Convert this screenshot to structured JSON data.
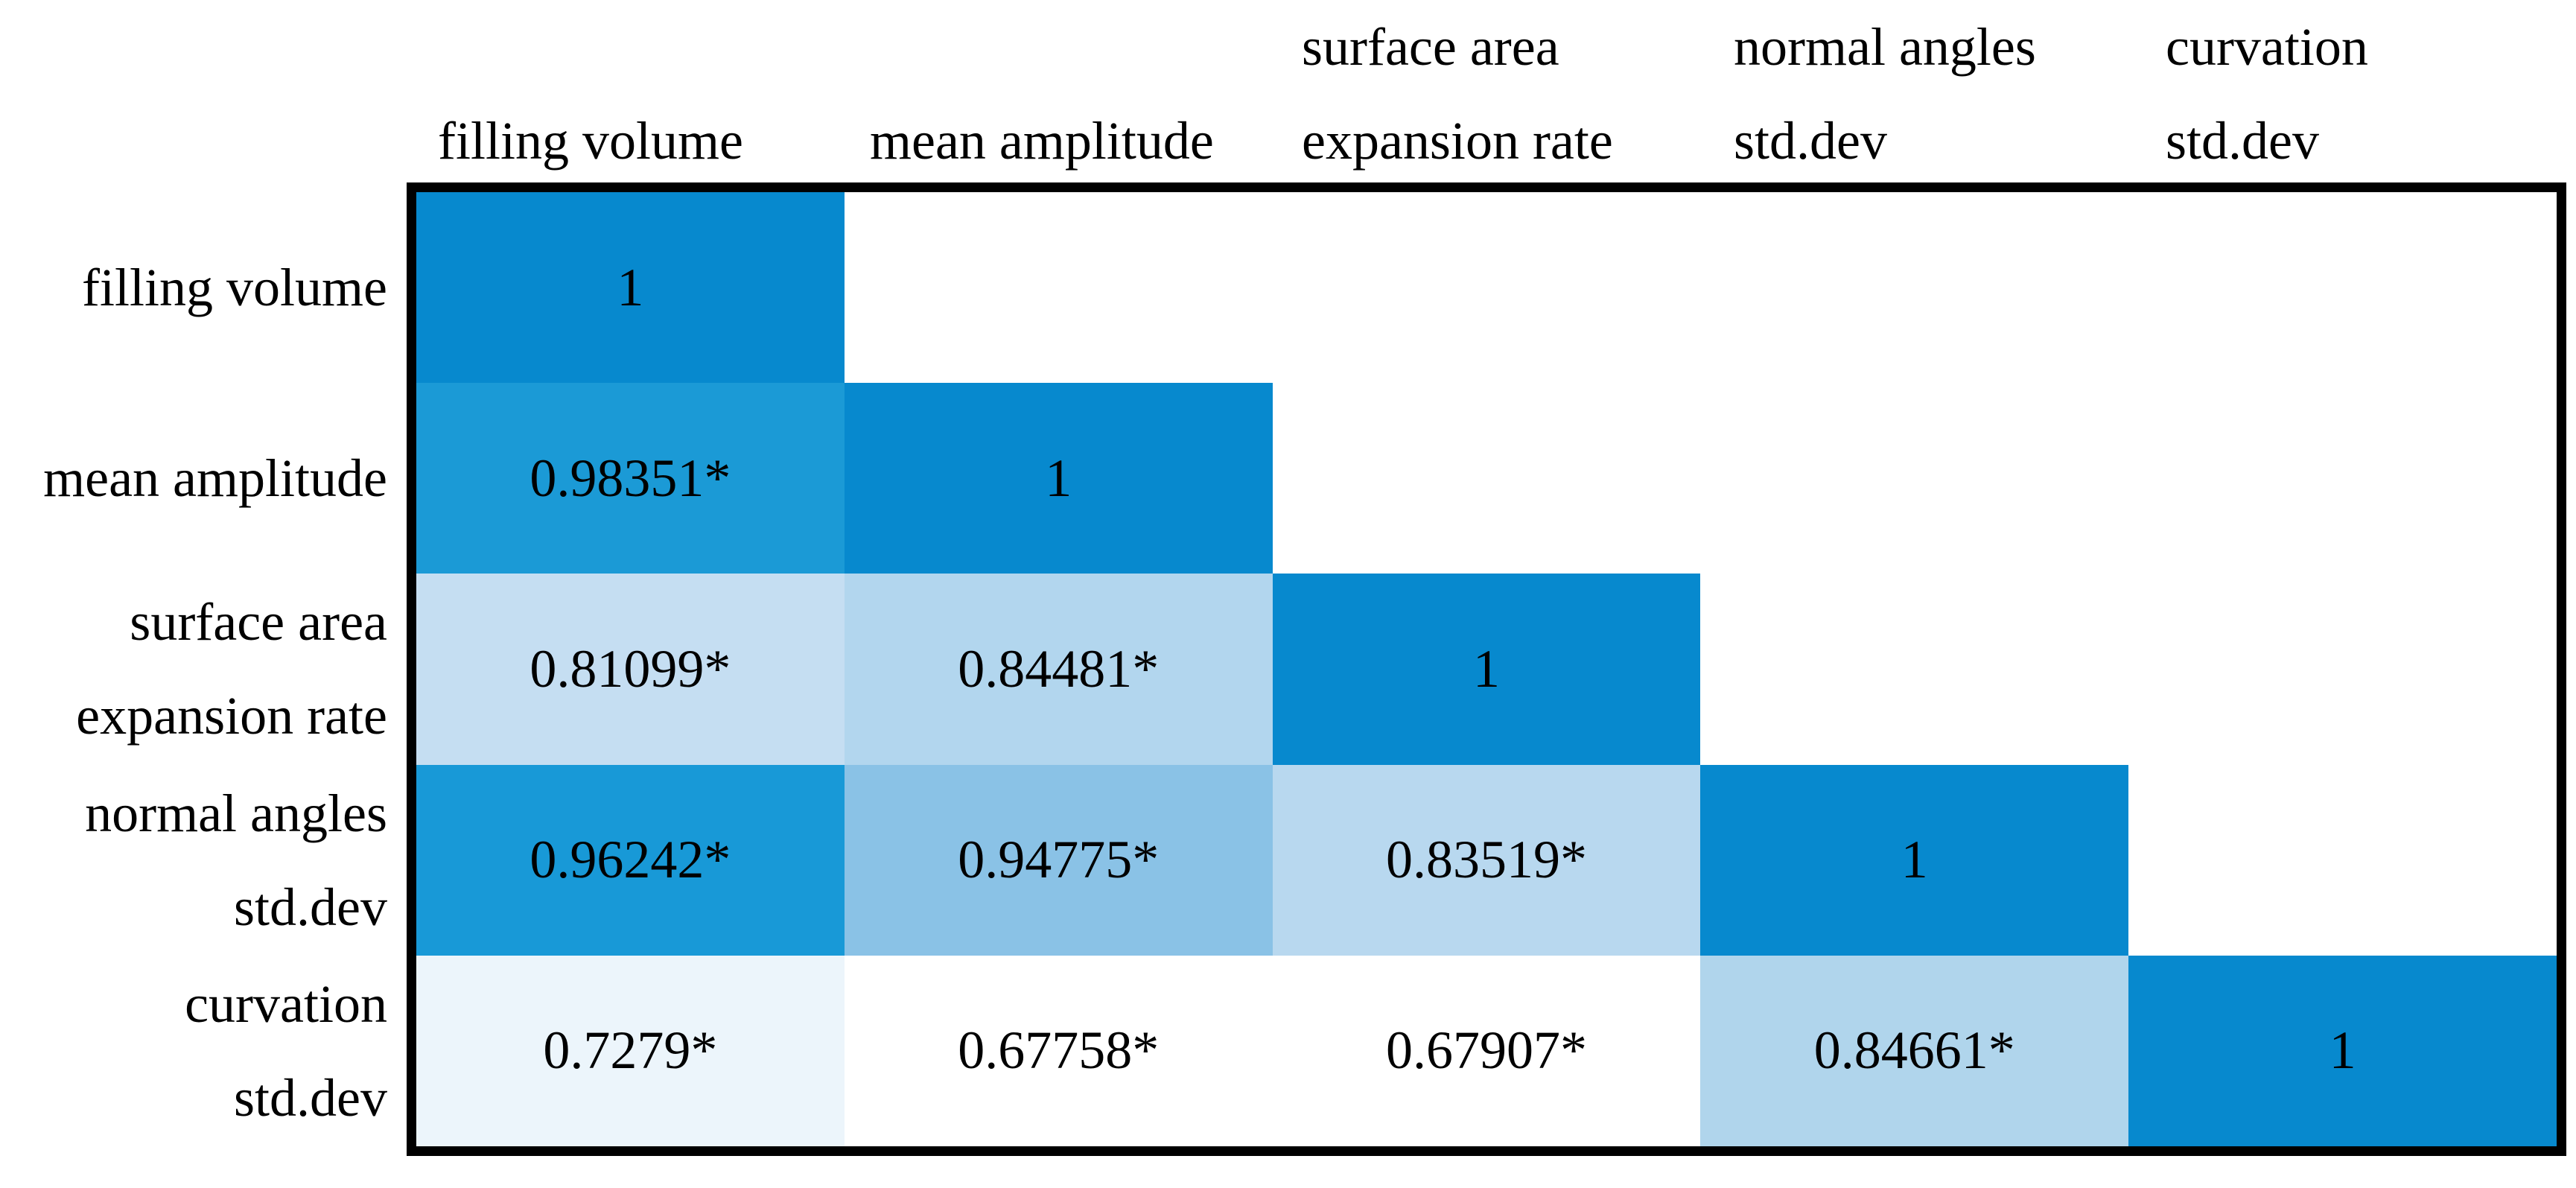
{
  "chart_data": {
    "type": "heatmap",
    "title": "",
    "description": "lower-triangular correlation matrix, blue intensity encodes correlation strength",
    "variables": [
      "filling volume",
      "mean amplitude",
      "surface area expansion rate",
      "normal angles std.dev",
      "curvation std.dev"
    ],
    "column_headers": [
      [
        "",
        "filling volume"
      ],
      [
        "",
        "mean amplitude"
      ],
      [
        "surface area",
        "expansion rate"
      ],
      [
        "normal angles",
        "std.dev"
      ],
      [
        "curvation",
        "std.dev"
      ]
    ],
    "row_labels": [
      [
        "filling volume",
        ""
      ],
      [
        "mean amplitude",
        ""
      ],
      [
        "surface area",
        "expansion rate"
      ],
      [
        "normal angles",
        "std.dev"
      ],
      [
        "curvation",
        "std.dev"
      ]
    ],
    "correlations": [
      [
        1,
        null,
        null,
        null,
        null
      ],
      [
        0.98351,
        1,
        null,
        null,
        null
      ],
      [
        0.81099,
        0.84481,
        1,
        null,
        null
      ],
      [
        0.96242,
        0.94775,
        0.83519,
        1,
        null
      ],
      [
        0.7279,
        0.67758,
        0.67907,
        0.84661,
        1
      ]
    ],
    "significance_marker": "*",
    "cells": [
      [
        {
          "text": "1",
          "color": "#0789ce"
        },
        null,
        null,
        null,
        null
      ],
      [
        {
          "text": "0.98351*",
          "color": "#1b9ad6"
        },
        {
          "text": "1",
          "color": "#0789ce"
        },
        null,
        null,
        null
      ],
      [
        {
          "text": "0.81099*",
          "color": "#c5def2"
        },
        {
          "text": "0.84481*",
          "color": "#b2d6ee"
        },
        {
          "text": "1",
          "color": "#0789ce"
        },
        null,
        null
      ],
      [
        {
          "text": "0.96242*",
          "color": "#1899d7"
        },
        {
          "text": "0.94775*",
          "color": "#8ac2e6"
        },
        {
          "text": "0.83519*",
          "color": "#b8d8ef"
        },
        {
          "text": "1",
          "color": "#0789ce"
        },
        null
      ],
      [
        {
          "text": "0.7279*",
          "color": "#ecf5fb"
        },
        {
          "text": "0.67758*",
          "color": "#ffffff"
        },
        {
          "text": "0.67907*",
          "color": "#ffffff"
        },
        {
          "text": "0.84661*",
          "color": "#b0d5ec"
        },
        {
          "text": "1",
          "color": "#0789ce"
        }
      ]
    ],
    "colors": {
      "max_correlation": "#0789ce",
      "min_correlation": "#ffffff",
      "border": "#000000",
      "background": "#ffffff",
      "text": "#000000"
    },
    "grid": false,
    "legend_position": "none"
  }
}
